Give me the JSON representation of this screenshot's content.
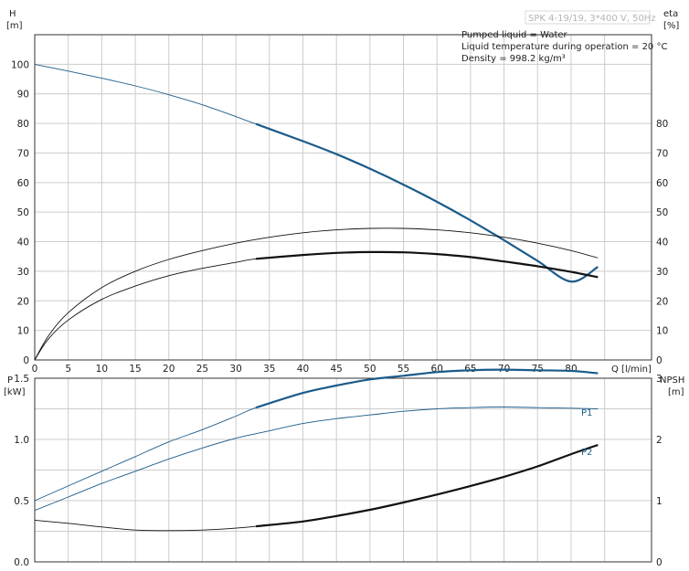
{
  "header": {
    "model": "SPK 4-19/19, 3*400 V, 50Hz",
    "info_lines": [
      "Pumped liquid = Water",
      "Liquid temperature during operation = 20 °C",
      "Density = 998.2 kg/m³"
    ]
  },
  "colors": {
    "blue": "#1b5b8a",
    "black": "#111111",
    "thin": "#5a5a5a"
  },
  "chart_data": [
    {
      "type": "line",
      "panel": "top",
      "left_axis": {
        "label_1": "H",
        "label_2": "[m]",
        "ticks": [
          0,
          10,
          20,
          30,
          40,
          50,
          60,
          70,
          80,
          90,
          100
        ],
        "ylim": [
          0,
          110
        ]
      },
      "right_axis": {
        "label_1": "eta",
        "label_2": "[%]",
        "ticks": [
          0,
          10,
          20,
          30,
          40,
          50,
          60,
          70,
          80
        ],
        "ylim": [
          0,
          110
        ]
      },
      "x_axis": {
        "label": "Q  [l/min]",
        "ticks": [
          0,
          5,
          10,
          15,
          20,
          25,
          30,
          35,
          40,
          45,
          50,
          55,
          60,
          65,
          70,
          75,
          80
        ],
        "xlim": [
          0,
          92
        ]
      },
      "grid": true,
      "series": [
        {
          "id": "head",
          "axis": "left",
          "color": "#1b5b8a",
          "bold_from": 33,
          "x": [
            0,
            5,
            10,
            15,
            20,
            25,
            30,
            33,
            40,
            45,
            50,
            55,
            60,
            65,
            70,
            75,
            80,
            84
          ],
          "y": [
            100,
            97.7,
            95.3,
            92.7,
            89.7,
            86.3,
            82.3,
            79.8,
            74,
            69.6,
            64.7,
            59.3,
            53.5,
            47.2,
            40.5,
            33.5,
            26.5,
            31.5
          ]
        },
        {
          "id": "efficiency-upper",
          "axis": "right",
          "color": "#111111",
          "bold_from": 999,
          "x": [
            0,
            2,
            5,
            10,
            15,
            20,
            25,
            30,
            35,
            40,
            45,
            50,
            55,
            60,
            65,
            70,
            75,
            80,
            84
          ],
          "y": [
            0,
            8,
            16,
            24.5,
            30,
            34,
            37,
            39.5,
            41.5,
            43,
            44,
            44.5,
            44.5,
            44,
            43,
            41.5,
            39.5,
            37,
            34.5
          ]
        },
        {
          "id": "efficiency-lower",
          "axis": "right",
          "color": "#111111",
          "bold_from": 33,
          "x": [
            0,
            2,
            5,
            10,
            15,
            20,
            25,
            30,
            33,
            40,
            45,
            50,
            55,
            60,
            65,
            70,
            75,
            80,
            84
          ],
          "y": [
            0,
            7,
            13.5,
            20.5,
            25,
            28.5,
            31,
            33,
            34.2,
            35.5,
            36.2,
            36.5,
            36.4,
            35.8,
            34.8,
            33.3,
            31.7,
            29.8,
            28
          ]
        }
      ]
    },
    {
      "type": "line",
      "panel": "bottom",
      "left_axis": {
        "label_1": "P",
        "label_2": "[kW]",
        "ticks": [
          "0.0",
          "0.5",
          "1.0",
          "1.5"
        ],
        "tick_values": [
          0,
          0.5,
          1.0,
          1.5
        ],
        "ylim": [
          0,
          1.5
        ]
      },
      "right_axis": {
        "label_1": "NPSH",
        "label_2": "[m]",
        "ticks": [
          "0",
          "1",
          "2",
          "3"
        ],
        "tick_values": [
          0,
          1,
          2,
          3
        ],
        "ylim": [
          0,
          3.0
        ]
      },
      "x_axis": {
        "xlim": [
          0,
          92
        ]
      },
      "grid": true,
      "series": [
        {
          "id": "p1",
          "name": "P1",
          "axis": "left",
          "color": "#1b5b8a",
          "bold_from": 33,
          "x": [
            0,
            5,
            10,
            15,
            20,
            25,
            30,
            33,
            40,
            45,
            50,
            55,
            60,
            65,
            70,
            75,
            80,
            84
          ],
          "y": [
            0.5,
            0.62,
            0.74,
            0.86,
            0.98,
            1.08,
            1.19,
            1.26,
            1.38,
            1.44,
            1.49,
            1.52,
            1.55,
            1.565,
            1.57,
            1.565,
            1.56,
            1.54
          ]
        },
        {
          "id": "p2",
          "name": "P2",
          "axis": "left",
          "color": "#1b5b8a",
          "bold_from": 999,
          "x": [
            0,
            5,
            10,
            15,
            20,
            25,
            30,
            35,
            40,
            45,
            50,
            55,
            60,
            65,
            70,
            75,
            80,
            84
          ],
          "y": [
            0.42,
            0.53,
            0.64,
            0.74,
            0.84,
            0.93,
            1.01,
            1.07,
            1.13,
            1.17,
            1.2,
            1.23,
            1.25,
            1.26,
            1.265,
            1.26,
            1.255,
            1.25
          ]
        },
        {
          "id": "npsh",
          "axis": "right",
          "color": "#111111",
          "bold_from": 33,
          "x": [
            0,
            5,
            10,
            15,
            20,
            25,
            30,
            33,
            40,
            45,
            50,
            55,
            60,
            65,
            70,
            75,
            80,
            84
          ],
          "y": [
            0.68,
            0.63,
            0.57,
            0.52,
            0.51,
            0.52,
            0.55,
            0.58,
            0.66,
            0.75,
            0.85,
            0.97,
            1.1,
            1.24,
            1.39,
            1.56,
            1.76,
            1.91
          ]
        }
      ]
    }
  ]
}
